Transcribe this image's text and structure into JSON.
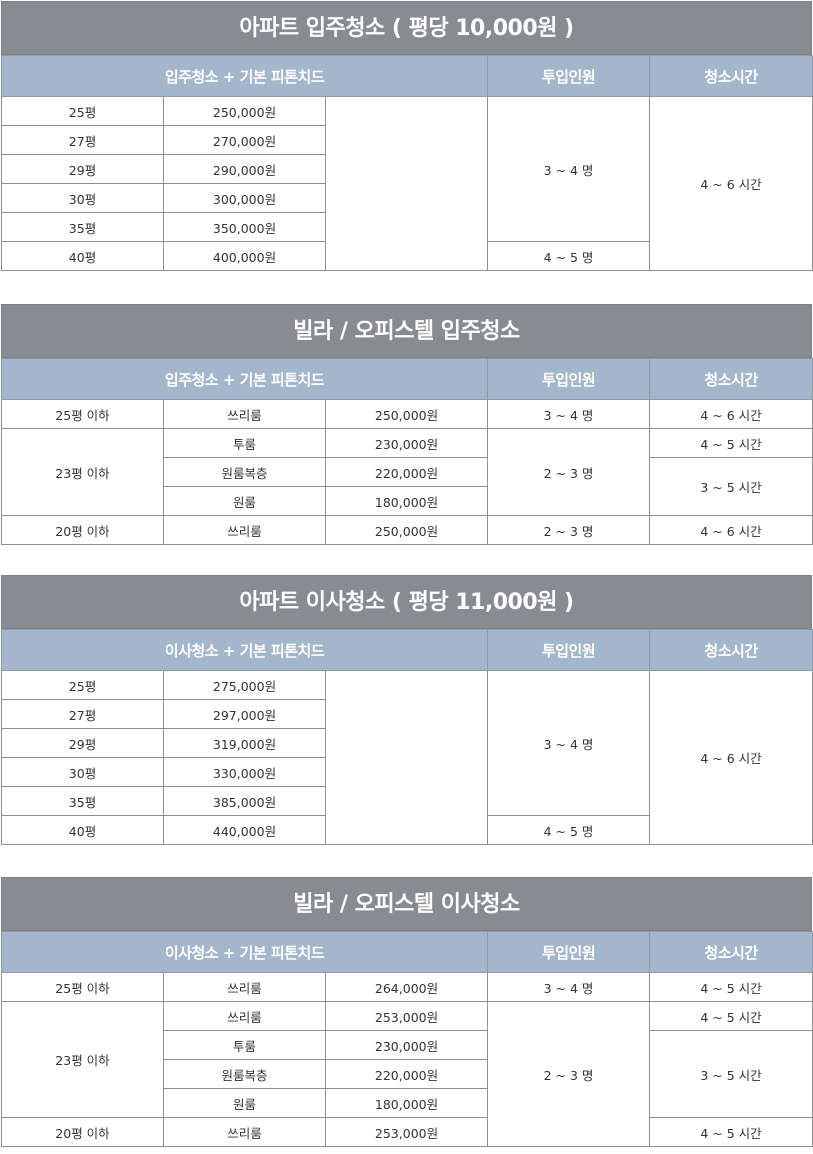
{
  "sections": [
    {
      "title": "아파트 입주청소 ( 평당 10,000원 )",
      "header": [
        "입주청소 + 기본 피톤치드",
        "투입인원",
        "청소시간"
      ],
      "rows": [
        {
          "size": "25평",
          "price": "250,000원"
        },
        {
          "size": "27평",
          "price": "270,000원"
        },
        {
          "size": "29평",
          "price": "290,000원"
        },
        {
          "size": "30평",
          "price": "300,000원"
        },
        {
          "size": "35평",
          "price": "350,000원"
        },
        {
          "size": "40평",
          "price": "400,000원"
        }
      ],
      "staff_a": "3 ~ 4 명",
      "staff_b": "4 ~ 5 명",
      "time": "4 ~ 6 시간"
    },
    {
      "title": "빌라 / 오피스텔 입주청소",
      "header": [
        "입주청소 + 기본 피톤치드",
        "투입인원",
        "청소시간"
      ],
      "rows": [
        {
          "size": "25평 이하",
          "type": "쓰리룸",
          "price": "250,000원",
          "staff": "3 ~ 4 명",
          "time": "4 ~ 6 시간"
        },
        {
          "size": "23평 이하",
          "type": "투룸",
          "price": "230,000원",
          "staff": "2 ~ 3 명",
          "time": "4 ~ 5 시간"
        },
        {
          "type": "원룸복층",
          "price": "220,000원",
          "time": "3 ~ 5 시간"
        },
        {
          "type": "원룸",
          "price": "180,000원"
        },
        {
          "size": "20평 이하",
          "type": "쓰리룸",
          "price": "250,000원",
          "staff": "2 ~ 3 명",
          "time": "4 ~ 6 시간"
        }
      ]
    },
    {
      "title": "아파트 이사청소 ( 평당 11,000원 )",
      "header": [
        "이사청소 + 기본 피톤치드",
        "투입인원",
        "청소시간"
      ],
      "rows": [
        {
          "size": "25평",
          "price": "275,000원"
        },
        {
          "size": "27평",
          "price": "297,000원"
        },
        {
          "size": "29평",
          "price": "319,000원"
        },
        {
          "size": "30평",
          "price": "330,000원"
        },
        {
          "size": "35평",
          "price": "385,000원"
        },
        {
          "size": "40평",
          "price": "440,000원"
        }
      ],
      "staff_a": "3 ~ 4 명",
      "staff_b": "4 ~ 5 명",
      "time": "4 ~ 6 시간"
    },
    {
      "title": "빌라 / 오피스텔 이사청소",
      "header": [
        "이사청소 + 기본 피톤치드",
        "투입인원",
        "청소시간"
      ],
      "rows": [
        {
          "size": "25평 이하",
          "type": "쓰리룸",
          "price": "264,000원",
          "staff": "3 ~ 4 명",
          "time": "4 ~ 5 시간"
        },
        {
          "size": "23평 이하",
          "type": "쓰리룸",
          "price": "253,000원",
          "staff": "2 ~ 3 명",
          "time": "4 ~ 5 시간"
        },
        {
          "type": "투룸",
          "price": "230,000원",
          "time": "3 ~ 5 시간"
        },
        {
          "type": "원룸복층",
          "price": "220,000원"
        },
        {
          "type": "원룸",
          "price": "180,000원"
        },
        {
          "size": "20평 이하",
          "type": "쓰리룸",
          "price": "253,000원",
          "time": "4 ~ 5 시간"
        }
      ]
    }
  ],
  "colors": {
    "title_bg": "#888b8f",
    "header_bg": "#a4b6cb",
    "border": "#8f8f8f"
  }
}
